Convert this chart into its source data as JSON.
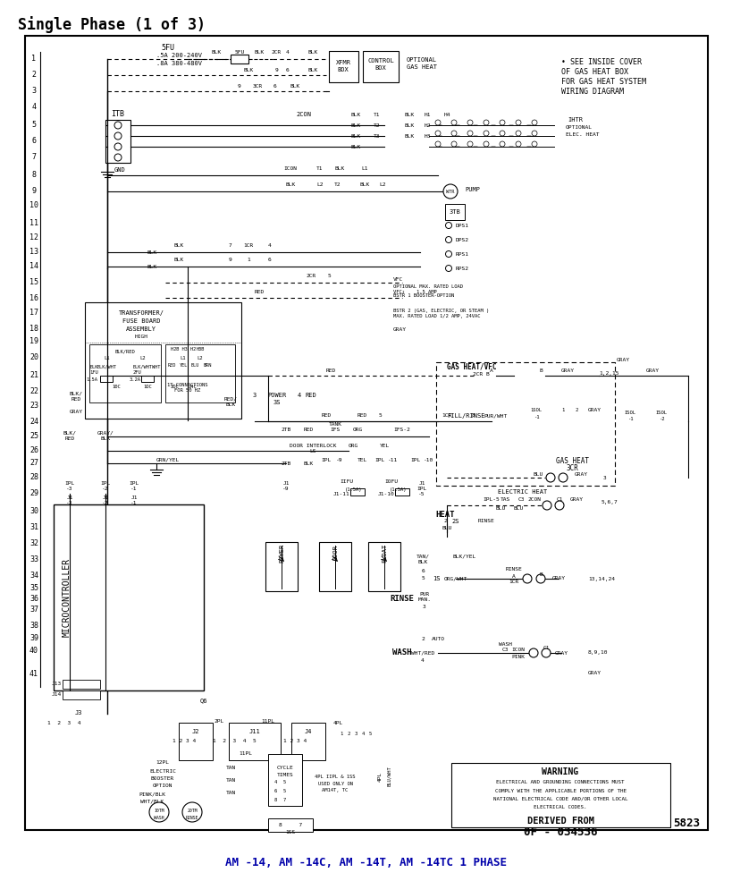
{
  "title": "Single Phase (1 of 3)",
  "subtitle": "AM -14, AM -14C, AM -14T, AM -14TC 1 PHASE",
  "page_number": "5823",
  "background_color": "#ffffff",
  "border_color": "#000000",
  "title_color": "#000000",
  "subtitle_color": "#0000aa",
  "line_color": "#000000",
  "text_color": "#000000",
  "top_right_note": "• SEE INSIDE COVER\nOF GAS HEAT BOX\nFOR GAS HEAT SYSTEM\nWIRING DIAGRAM",
  "row_labels": [
    "1",
    "2",
    "3",
    "4",
    "5",
    "6",
    "7",
    "8",
    "9",
    "10",
    "11",
    "12",
    "13",
    "14",
    "15",
    "16",
    "17",
    "18",
    "19",
    "20",
    "21",
    "22",
    "23",
    "24",
    "25",
    "26",
    "27",
    "28",
    "29",
    "30",
    "31",
    "32",
    "33",
    "34",
    "35",
    "36",
    "37",
    "38",
    "39",
    "40",
    "41"
  ],
  "warning_text": "WARNING",
  "derived_from": "DERIVED FROM",
  "derived_num": "0F - 034536"
}
